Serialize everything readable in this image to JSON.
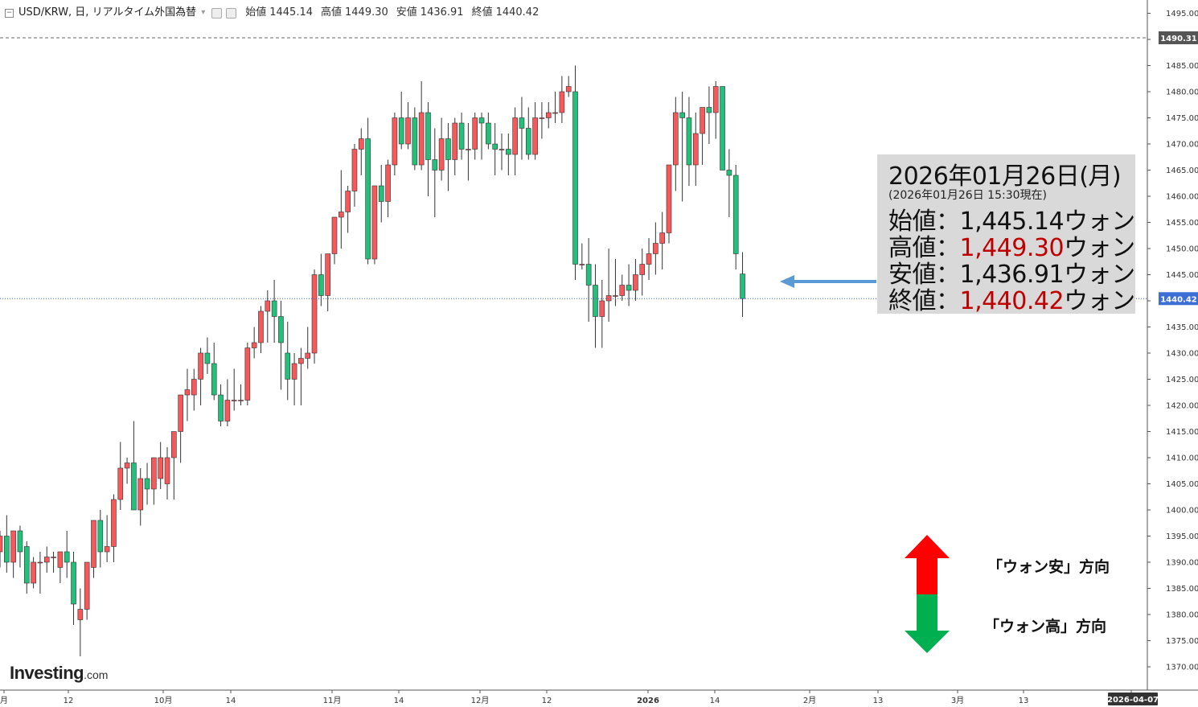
{
  "header": {
    "symbol": "USD/KRW, 日, リアルタイム外国為替",
    "open_label": "始値",
    "open": "1445.14",
    "high_label": "高値",
    "high": "1449.30",
    "low_label": "安値",
    "low": "1436.91",
    "close_label": "終値",
    "close": "1440.42"
  },
  "info_box": {
    "date": "2026年01月26日(月)",
    "timestamp": "(2026年01月26日 15:30現在)",
    "open_label": "始値：",
    "open_value": "1,445.14",
    "open_unit": "ウォン",
    "high_label": "高値：",
    "high_value": "1,449.30",
    "high_unit": "ウォン",
    "low_label": "安値：",
    "low_value": "1,436.91",
    "low_unit": "ウォン",
    "close_label": "終値：",
    "close_value": "1,440.42",
    "close_unit": "ウォン"
  },
  "annotations": {
    "weak_won": "「ウォン安」方向",
    "strong_won": "「ウォン高」方向"
  },
  "logo": {
    "main": "Investing",
    "suffix": ".com"
  },
  "colors": {
    "up": "#f05350",
    "down": "#26a69a",
    "up_fill": "#f7585a",
    "down_fill": "#22c07a",
    "arrow_red": "#ff0000",
    "arrow_green": "#00b050",
    "pointer": "#5b9bd5"
  },
  "chart_data": {
    "type": "candlestick",
    "series_name": "USD/KRW",
    "y_ticks": [
      1370,
      1375,
      1380,
      1385,
      1390,
      1395,
      1400,
      1405,
      1410,
      1415,
      1420,
      1425,
      1430,
      1435,
      1440,
      1445,
      1450,
      1455,
      1460,
      1465,
      1470,
      1475,
      1480,
      1485,
      1490,
      1495
    ],
    "ylim": [
      1365.5,
      1498.5
    ],
    "x_tick_labels": [
      "月",
      "12",
      "10月",
      "14",
      "11月",
      "14",
      "12月",
      "12",
      "2026",
      "14",
      "2月",
      "13",
      "3月",
      "13",
      "2026-04-07"
    ],
    "price_badges": [
      "1490.31",
      "1440.42"
    ],
    "reference_line_value": 1490.31,
    "current_price": 1440.42,
    "candles": [
      [
        1392,
        1396,
        1389,
        1395
      ],
      [
        1395,
        1399,
        1388,
        1390
      ],
      [
        1390,
        1396,
        1387,
        1396
      ],
      [
        1396,
        1397,
        1389,
        1392
      ],
      [
        1393,
        1394,
        1384,
        1386
      ],
      [
        1386,
        1391,
        1385,
        1390
      ],
      [
        1390,
        1392,
        1384,
        1390
      ],
      [
        1390,
        1393,
        1388,
        1391
      ],
      [
        1391,
        1392,
        1388,
        1391
      ],
      [
        1389,
        1391,
        1386,
        1392
      ],
      [
        1392,
        1396,
        1387,
        1390
      ],
      [
        1390,
        1392,
        1378,
        1382
      ],
      [
        1379,
        1385,
        1372,
        1381
      ],
      [
        1381,
        1390,
        1379,
        1390
      ],
      [
        1389,
        1398,
        1387,
        1398
      ],
      [
        1398,
        1400,
        1389,
        1392
      ],
      [
        1392,
        1399,
        1390,
        1393
      ],
      [
        1393,
        1403,
        1390,
        1402
      ],
      [
        1402,
        1413,
        1400,
        1408
      ],
      [
        1408,
        1410,
        1405,
        1409
      ],
      [
        1409,
        1417,
        1400,
        1400
      ],
      [
        1400,
        1408,
        1397,
        1406
      ],
      [
        1406,
        1409,
        1401,
        1404
      ],
      [
        1404,
        1410,
        1401,
        1410
      ],
      [
        1406,
        1413,
        1404,
        1410
      ],
      [
        1405,
        1412,
        1402,
        1410
      ],
      [
        1410,
        1415,
        1402,
        1415
      ],
      [
        1415,
        1422,
        1409,
        1422
      ],
      [
        1422,
        1427,
        1417,
        1423
      ],
      [
        1422,
        1427,
        1419,
        1425
      ],
      [
        1425,
        1431,
        1420,
        1430
      ],
      [
        1430,
        1433,
        1426,
        1428
      ],
      [
        1428,
        1432,
        1421,
        1422
      ],
      [
        1422,
        1424,
        1416,
        1417
      ],
      [
        1417,
        1425,
        1416,
        1421
      ],
      [
        1421,
        1427,
        1419,
        1421
      ],
      [
        1421,
        1424,
        1420,
        1421
      ],
      [
        1421,
        1432,
        1420,
        1431
      ],
      [
        1431,
        1435,
        1429,
        1432
      ],
      [
        1432,
        1439,
        1430,
        1438
      ],
      [
        1438,
        1442,
        1432,
        1440
      ],
      [
        1440,
        1444,
        1432,
        1437
      ],
      [
        1437,
        1440,
        1423,
        1432
      ],
      [
        1430,
        1436,
        1421,
        1425
      ],
      [
        1425,
        1430,
        1420,
        1428
      ],
      [
        1428,
        1431,
        1420,
        1429
      ],
      [
        1429,
        1435,
        1427,
        1430
      ],
      [
        1430,
        1446,
        1428,
        1445
      ],
      [
        1445,
        1449,
        1439,
        1441
      ],
      [
        1441,
        1449,
        1438,
        1449
      ],
      [
        1449,
        1456,
        1447,
        1456
      ],
      [
        1456,
        1465,
        1450,
        1457
      ],
      [
        1457,
        1462,
        1453,
        1461
      ],
      [
        1461,
        1470,
        1458,
        1469
      ],
      [
        1469,
        1473,
        1464,
        1471
      ],
      [
        1471,
        1475,
        1447,
        1448
      ],
      [
        1448,
        1462,
        1447,
        1462
      ],
      [
        1462,
        1466,
        1455,
        1459
      ],
      [
        1459,
        1467,
        1456,
        1466
      ],
      [
        1466,
        1476,
        1464,
        1475
      ],
      [
        1475,
        1480,
        1469,
        1470
      ],
      [
        1470,
        1478,
        1469,
        1475
      ],
      [
        1475,
        1477,
        1465,
        1466
      ],
      [
        1466,
        1482,
        1465,
        1476
      ],
      [
        1476,
        1478,
        1460,
        1467
      ],
      [
        1467,
        1473,
        1456,
        1465
      ],
      [
        1465,
        1475,
        1463,
        1471
      ],
      [
        1471,
        1474,
        1461,
        1467
      ],
      [
        1467,
        1475,
        1464,
        1474
      ],
      [
        1474,
        1476,
        1467,
        1469
      ],
      [
        1469,
        1474,
        1463,
        1469
      ],
      [
        1469,
        1476,
        1467,
        1475
      ],
      [
        1475,
        1476,
        1467,
        1474
      ],
      [
        1474,
        1476,
        1469,
        1470
      ],
      [
        1470,
        1474,
        1464,
        1469
      ],
      [
        1469,
        1472,
        1465,
        1469
      ],
      [
        1469,
        1472,
        1464,
        1468
      ],
      [
        1468,
        1477,
        1464,
        1475
      ],
      [
        1475,
        1479,
        1467,
        1473
      ],
      [
        1473,
        1477,
        1467,
        1468
      ],
      [
        1468,
        1478,
        1467,
        1475
      ],
      [
        1475,
        1478,
        1471,
        1475
      ],
      [
        1475,
        1478,
        1473,
        1476
      ],
      [
        1476,
        1480,
        1474,
        1476
      ],
      [
        1476,
        1483,
        1474,
        1480
      ],
      [
        1480,
        1483,
        1479,
        1481
      ],
      [
        1480,
        1485,
        1444,
        1447
      ],
      [
        1447,
        1451,
        1446,
        1447
      ],
      [
        1447,
        1452,
        1436,
        1443
      ],
      [
        1443,
        1447,
        1431,
        1437
      ],
      [
        1437,
        1444,
        1431,
        1440
      ],
      [
        1440,
        1450,
        1436,
        1441
      ],
      [
        1441,
        1448,
        1439,
        1441
      ],
      [
        1441,
        1445,
        1440,
        1443
      ],
      [
        1443,
        1447,
        1439,
        1442
      ],
      [
        1442,
        1448,
        1440,
        1445
      ],
      [
        1445,
        1450,
        1441,
        1447
      ],
      [
        1447,
        1452,
        1444,
        1449
      ],
      [
        1449,
        1455,
        1445,
        1451
      ],
      [
        1451,
        1457,
        1446,
        1453
      ],
      [
        1453,
        1466,
        1451,
        1466
      ],
      [
        1466,
        1479,
        1461,
        1476
      ],
      [
        1476,
        1480,
        1459,
        1475
      ],
      [
        1475,
        1479,
        1462,
        1466
      ],
      [
        1466,
        1476,
        1462,
        1472
      ],
      [
        1472,
        1477,
        1466,
        1477
      ],
      [
        1477,
        1481,
        1470,
        1476
      ],
      [
        1476,
        1482,
        1471,
        1481
      ],
      [
        1481,
        1481,
        1466,
        1465
      ],
      [
        1465,
        1469,
        1456,
        1464
      ],
      [
        1464,
        1466,
        1446,
        1449
      ],
      [
        1445.14,
        1449.3,
        1436.91,
        1440.42
      ]
    ]
  }
}
